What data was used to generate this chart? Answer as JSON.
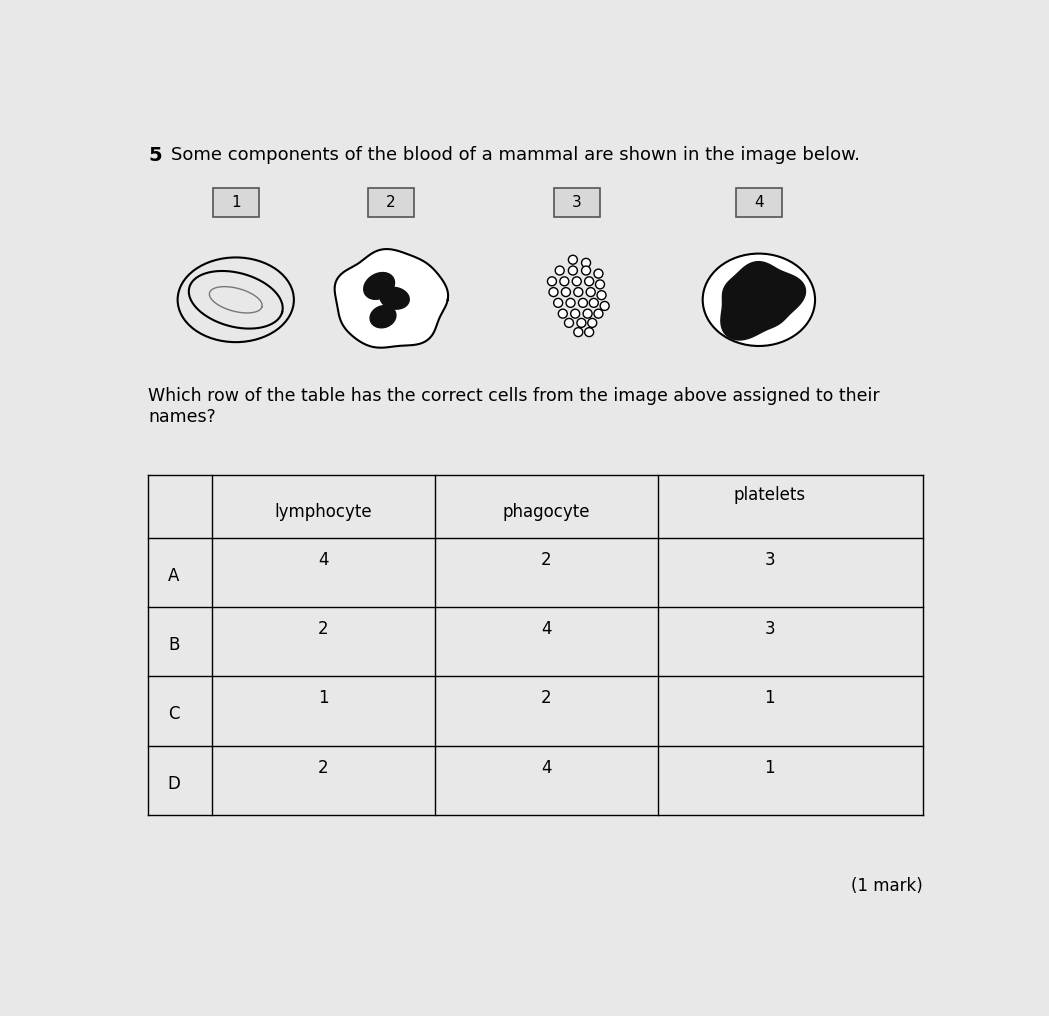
{
  "bg_color": "#e8e8e8",
  "question_num": "5",
  "question_text": "Some components of the blood of a mammal are shown in the image below.",
  "sub_question": "Which row of the table has the correct cells from the image above assigned to their\nnames?",
  "mark_text": "(1 mark)",
  "cell_labels": [
    "1",
    "2",
    "3",
    "4"
  ],
  "table_headers": [
    "",
    "lymphocyte",
    "phagocyte",
    "platelets"
  ],
  "table_rows": [
    [
      "A",
      "4",
      "2",
      "3"
    ],
    [
      "B",
      "2",
      "4",
      "3"
    ],
    [
      "C",
      "1",
      "2",
      "1"
    ],
    [
      "D",
      "2",
      "4",
      "1"
    ]
  ]
}
